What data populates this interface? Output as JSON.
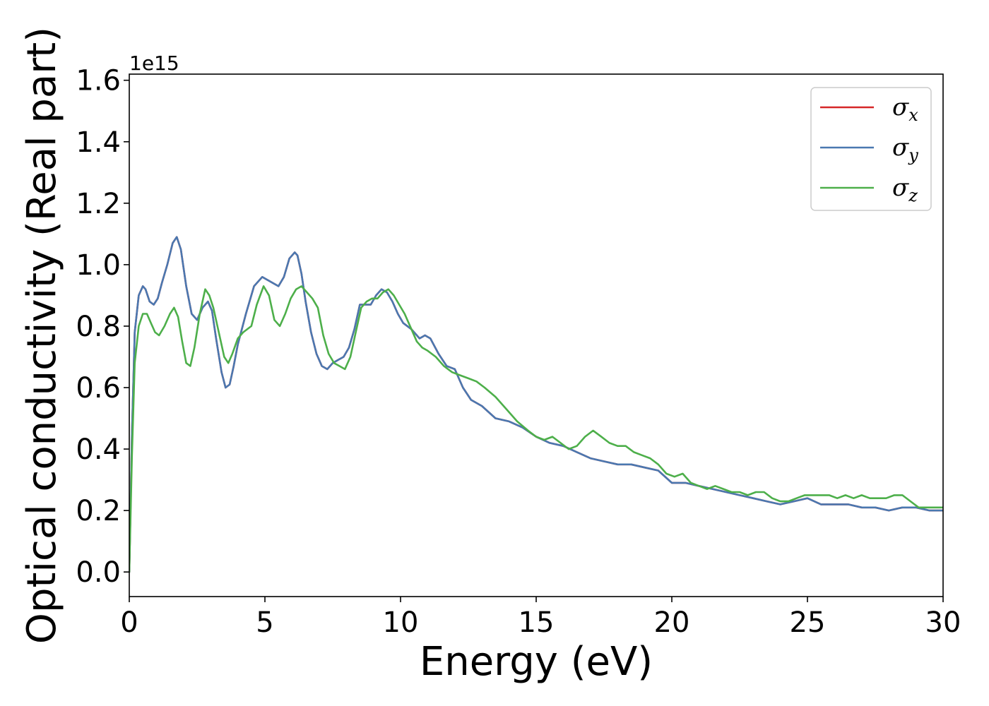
{
  "chart_data": {
    "type": "line",
    "xlabel": "Energy (eV)",
    "ylabel": "Optical conductivity (Real part)",
    "y_offset_text": "1e15",
    "xlim": [
      0,
      30
    ],
    "ylim": [
      -0.08,
      1.62
    ],
    "x_ticks": [
      0,
      5,
      10,
      15,
      20,
      25,
      30
    ],
    "x_tick_labels": [
      "0",
      "5",
      "10",
      "15",
      "20",
      "25",
      "30"
    ],
    "y_ticks": [
      0.0,
      0.2,
      0.4,
      0.6,
      0.8,
      1.0,
      1.2,
      1.4,
      1.6
    ],
    "y_tick_labels": [
      "0.0",
      "0.2",
      "0.4",
      "0.6",
      "0.8",
      "1.0",
      "1.2",
      "1.4",
      "1.6"
    ],
    "grid": false,
    "legend_position": "top-right",
    "series": [
      {
        "name": "σx",
        "symbol": "σ",
        "subscript": "x",
        "color": "#d62728",
        "x": [
          0,
          0.1,
          0.2,
          0.35,
          0.5,
          0.6,
          0.75,
          0.9,
          1.05,
          1.2,
          1.4,
          1.6,
          1.75,
          1.9,
          2.1,
          2.3,
          2.5,
          2.7,
          2.9,
          3.05,
          3.2,
          3.4,
          3.55,
          3.7,
          3.85,
          4.0,
          4.3,
          4.6,
          4.9,
          5.1,
          5.3,
          5.5,
          5.7,
          5.9,
          6.1,
          6.2,
          6.35,
          6.5,
          6.7,
          6.9,
          7.1,
          7.3,
          7.5,
          7.7,
          7.9,
          8.1,
          8.3,
          8.5,
          8.7,
          8.9,
          9.1,
          9.3,
          9.5,
          9.7,
          9.9,
          10.1,
          10.4,
          10.7,
          10.9,
          11.1,
          11.4,
          11.7,
          12.0,
          12.3,
          12.6,
          13.0,
          13.5,
          14.0,
          14.5,
          15.0,
          15.5,
          16.0,
          16.5,
          17.0,
          17.5,
          18.0,
          18.5,
          19.0,
          19.5,
          20.0,
          20.5,
          21.0,
          21.5,
          22.0,
          22.5,
          23.0,
          23.5,
          24.0,
          24.5,
          25.0,
          25.5,
          26.0,
          26.5,
          27.0,
          27.5,
          28.0,
          28.5,
          29.0,
          29.5,
          30.0
        ],
        "values": [
          0.0,
          0.45,
          0.78,
          0.9,
          0.93,
          0.92,
          0.88,
          0.87,
          0.89,
          0.94,
          1.0,
          1.07,
          1.09,
          1.05,
          0.93,
          0.84,
          0.82,
          0.86,
          0.88,
          0.85,
          0.76,
          0.65,
          0.6,
          0.61,
          0.67,
          0.74,
          0.84,
          0.93,
          0.96,
          0.95,
          0.94,
          0.93,
          0.96,
          1.02,
          1.04,
          1.03,
          0.97,
          0.88,
          0.78,
          0.71,
          0.67,
          0.66,
          0.68,
          0.69,
          0.7,
          0.73,
          0.79,
          0.87,
          0.87,
          0.87,
          0.9,
          0.92,
          0.91,
          0.88,
          0.84,
          0.81,
          0.79,
          0.76,
          0.77,
          0.76,
          0.71,
          0.67,
          0.66,
          0.6,
          0.56,
          0.54,
          0.5,
          0.49,
          0.47,
          0.44,
          0.42,
          0.41,
          0.39,
          0.37,
          0.36,
          0.35,
          0.35,
          0.34,
          0.33,
          0.29,
          0.29,
          0.28,
          0.27,
          0.26,
          0.25,
          0.24,
          0.23,
          0.22,
          0.23,
          0.24,
          0.22,
          0.22,
          0.22,
          0.21,
          0.21,
          0.2,
          0.21,
          0.21,
          0.2,
          0.2
        ]
      },
      {
        "name": "σy",
        "symbol": "σ",
        "subscript": "y",
        "color": "#4a78b0",
        "x": [
          0,
          0.1,
          0.2,
          0.35,
          0.5,
          0.6,
          0.75,
          0.9,
          1.05,
          1.2,
          1.4,
          1.6,
          1.75,
          1.9,
          2.1,
          2.3,
          2.5,
          2.7,
          2.9,
          3.05,
          3.2,
          3.4,
          3.55,
          3.7,
          3.85,
          4.0,
          4.3,
          4.6,
          4.9,
          5.1,
          5.3,
          5.5,
          5.7,
          5.9,
          6.1,
          6.2,
          6.35,
          6.5,
          6.7,
          6.9,
          7.1,
          7.3,
          7.5,
          7.7,
          7.9,
          8.1,
          8.3,
          8.5,
          8.7,
          8.9,
          9.1,
          9.3,
          9.5,
          9.7,
          9.9,
          10.1,
          10.4,
          10.7,
          10.9,
          11.1,
          11.4,
          11.7,
          12.0,
          12.3,
          12.6,
          13.0,
          13.5,
          14.0,
          14.5,
          15.0,
          15.5,
          16.0,
          16.5,
          17.0,
          17.5,
          18.0,
          18.5,
          19.0,
          19.5,
          20.0,
          20.5,
          21.0,
          21.5,
          22.0,
          22.5,
          23.0,
          23.5,
          24.0,
          24.5,
          25.0,
          25.5,
          26.0,
          26.5,
          27.0,
          27.5,
          28.0,
          28.5,
          29.0,
          29.5,
          30.0
        ],
        "values": [
          0.0,
          0.45,
          0.78,
          0.9,
          0.93,
          0.92,
          0.88,
          0.87,
          0.89,
          0.94,
          1.0,
          1.07,
          1.09,
          1.05,
          0.93,
          0.84,
          0.82,
          0.86,
          0.88,
          0.85,
          0.76,
          0.65,
          0.6,
          0.61,
          0.67,
          0.74,
          0.84,
          0.93,
          0.96,
          0.95,
          0.94,
          0.93,
          0.96,
          1.02,
          1.04,
          1.03,
          0.97,
          0.88,
          0.78,
          0.71,
          0.67,
          0.66,
          0.68,
          0.69,
          0.7,
          0.73,
          0.79,
          0.87,
          0.87,
          0.87,
          0.9,
          0.92,
          0.91,
          0.88,
          0.84,
          0.81,
          0.79,
          0.76,
          0.77,
          0.76,
          0.71,
          0.67,
          0.66,
          0.6,
          0.56,
          0.54,
          0.5,
          0.49,
          0.47,
          0.44,
          0.42,
          0.41,
          0.39,
          0.37,
          0.36,
          0.35,
          0.35,
          0.34,
          0.33,
          0.29,
          0.29,
          0.28,
          0.27,
          0.26,
          0.25,
          0.24,
          0.23,
          0.22,
          0.23,
          0.24,
          0.22,
          0.22,
          0.22,
          0.21,
          0.21,
          0.2,
          0.21,
          0.21,
          0.2,
          0.2
        ]
      },
      {
        "name": "σz",
        "symbol": "σ",
        "subscript": "z",
        "color": "#4daf4a",
        "x": [
          0,
          0.1,
          0.2,
          0.35,
          0.5,
          0.65,
          0.8,
          0.95,
          1.1,
          1.3,
          1.5,
          1.65,
          1.8,
          1.95,
          2.1,
          2.25,
          2.4,
          2.6,
          2.8,
          2.95,
          3.1,
          3.3,
          3.5,
          3.65,
          3.8,
          4.0,
          4.2,
          4.5,
          4.7,
          4.95,
          5.15,
          5.35,
          5.55,
          5.75,
          5.95,
          6.15,
          6.35,
          6.55,
          6.75,
          6.95,
          7.15,
          7.35,
          7.55,
          7.75,
          7.95,
          8.15,
          8.35,
          8.55,
          8.75,
          8.95,
          9.15,
          9.35,
          9.55,
          9.75,
          9.95,
          10.15,
          10.4,
          10.6,
          10.8,
          11.0,
          11.3,
          11.6,
          11.9,
          12.2,
          12.5,
          12.8,
          13.1,
          13.5,
          13.9,
          14.3,
          14.7,
          15.0,
          15.3,
          15.6,
          15.9,
          16.2,
          16.5,
          16.8,
          17.1,
          17.4,
          17.7,
          18.0,
          18.3,
          18.6,
          18.9,
          19.2,
          19.5,
          19.8,
          20.1,
          20.4,
          20.7,
          21.0,
          21.3,
          21.6,
          21.9,
          22.2,
          22.5,
          22.8,
          23.1,
          23.4,
          23.7,
          24.0,
          24.3,
          24.6,
          24.9,
          25.2,
          25.5,
          25.8,
          26.1,
          26.4,
          26.7,
          27.0,
          27.3,
          27.6,
          27.9,
          28.2,
          28.5,
          28.8,
          29.1,
          29.4,
          29.7,
          30.0
        ],
        "values": [
          0.0,
          0.38,
          0.68,
          0.8,
          0.84,
          0.84,
          0.81,
          0.78,
          0.77,
          0.8,
          0.84,
          0.86,
          0.83,
          0.75,
          0.68,
          0.67,
          0.73,
          0.84,
          0.92,
          0.9,
          0.86,
          0.78,
          0.7,
          0.68,
          0.71,
          0.76,
          0.78,
          0.8,
          0.87,
          0.93,
          0.9,
          0.82,
          0.8,
          0.84,
          0.89,
          0.92,
          0.93,
          0.91,
          0.89,
          0.86,
          0.77,
          0.71,
          0.68,
          0.67,
          0.66,
          0.7,
          0.78,
          0.86,
          0.88,
          0.89,
          0.89,
          0.91,
          0.92,
          0.9,
          0.87,
          0.84,
          0.79,
          0.75,
          0.73,
          0.72,
          0.7,
          0.67,
          0.65,
          0.64,
          0.63,
          0.62,
          0.6,
          0.57,
          0.53,
          0.49,
          0.46,
          0.44,
          0.43,
          0.44,
          0.42,
          0.4,
          0.41,
          0.44,
          0.46,
          0.44,
          0.42,
          0.41,
          0.41,
          0.39,
          0.38,
          0.37,
          0.35,
          0.32,
          0.31,
          0.32,
          0.29,
          0.28,
          0.27,
          0.28,
          0.27,
          0.26,
          0.26,
          0.25,
          0.26,
          0.26,
          0.24,
          0.23,
          0.23,
          0.24,
          0.25,
          0.25,
          0.25,
          0.25,
          0.24,
          0.25,
          0.24,
          0.25,
          0.24,
          0.24,
          0.24,
          0.25,
          0.25,
          0.23,
          0.21,
          0.21,
          0.21,
          0.21
        ]
      }
    ]
  }
}
